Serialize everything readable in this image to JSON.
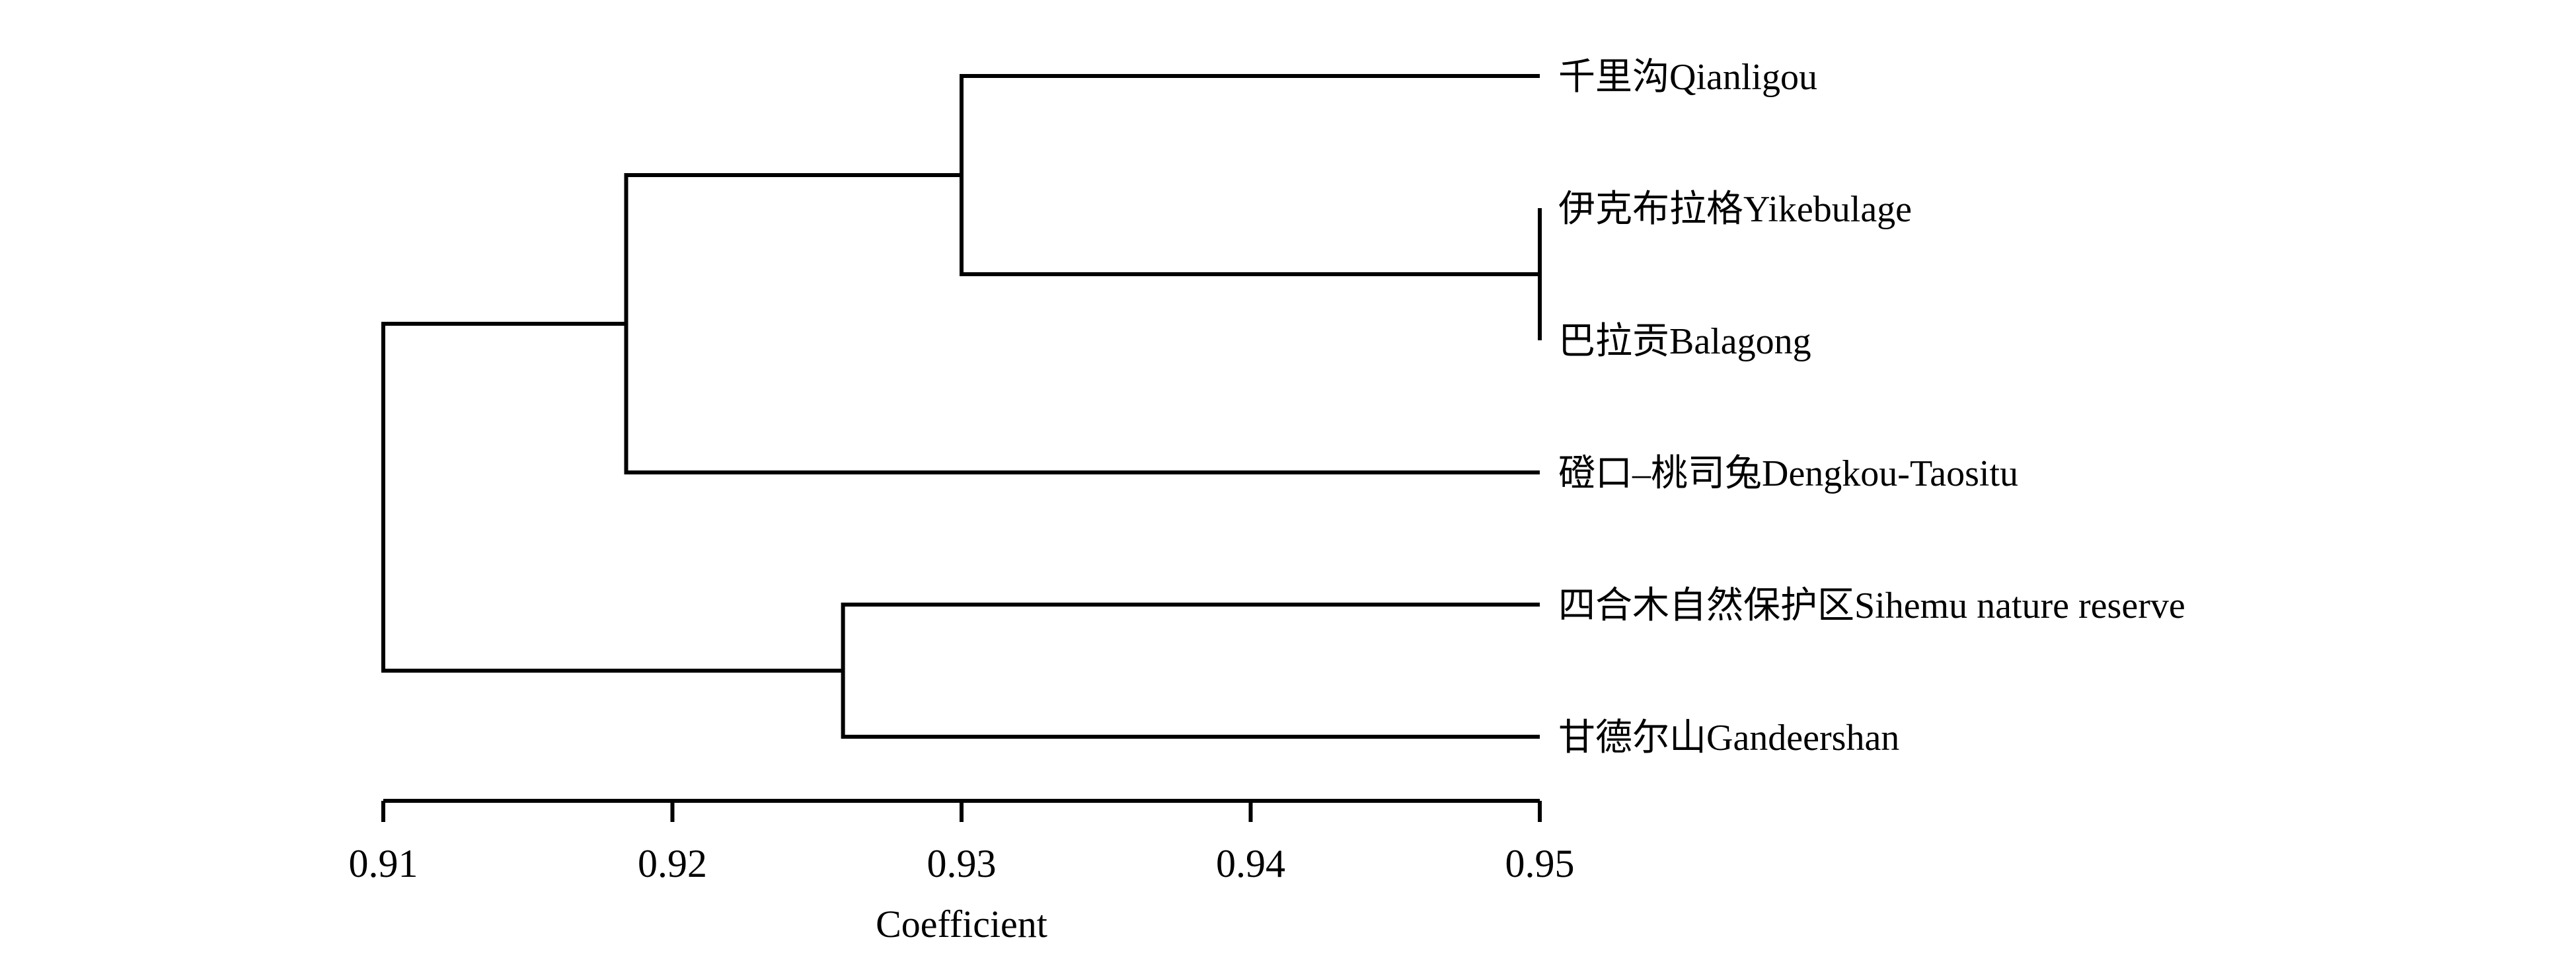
{
  "chart_data": {
    "type": "dendrogram",
    "xlabel": "Coefficient",
    "xlim": [
      0.91,
      0.95
    ],
    "xticks": [
      0.91,
      0.92,
      0.93,
      0.94,
      0.95
    ],
    "xtick_labels": [
      "0.91",
      "0.92",
      "0.93",
      "0.94",
      "0.95"
    ],
    "leaves": [
      "千里沟Qianligou",
      "伊克布拉格Yikebulage",
      "巴拉贡Balagong",
      "磴口–桃司兔Dengkou-Taositu",
      "四合木自然保护区Sihemu nature reserve",
      "甘德尔山Gandeershan"
    ],
    "merges": [
      {
        "id": "n1",
        "children": [
          "L1",
          "L2"
        ],
        "height": 0.95
      },
      {
        "id": "n2",
        "children": [
          "L0",
          "n1"
        ],
        "height": 0.93
      },
      {
        "id": "n3",
        "children": [
          "n2",
          "L3"
        ],
        "height": 0.9184
      },
      {
        "id": "n4",
        "children": [
          "L4",
          "L5"
        ],
        "height": 0.9259
      },
      {
        "id": "n5",
        "children": [
          "n3",
          "n4"
        ],
        "height": 0.91
      }
    ],
    "line_color": "#000000"
  }
}
